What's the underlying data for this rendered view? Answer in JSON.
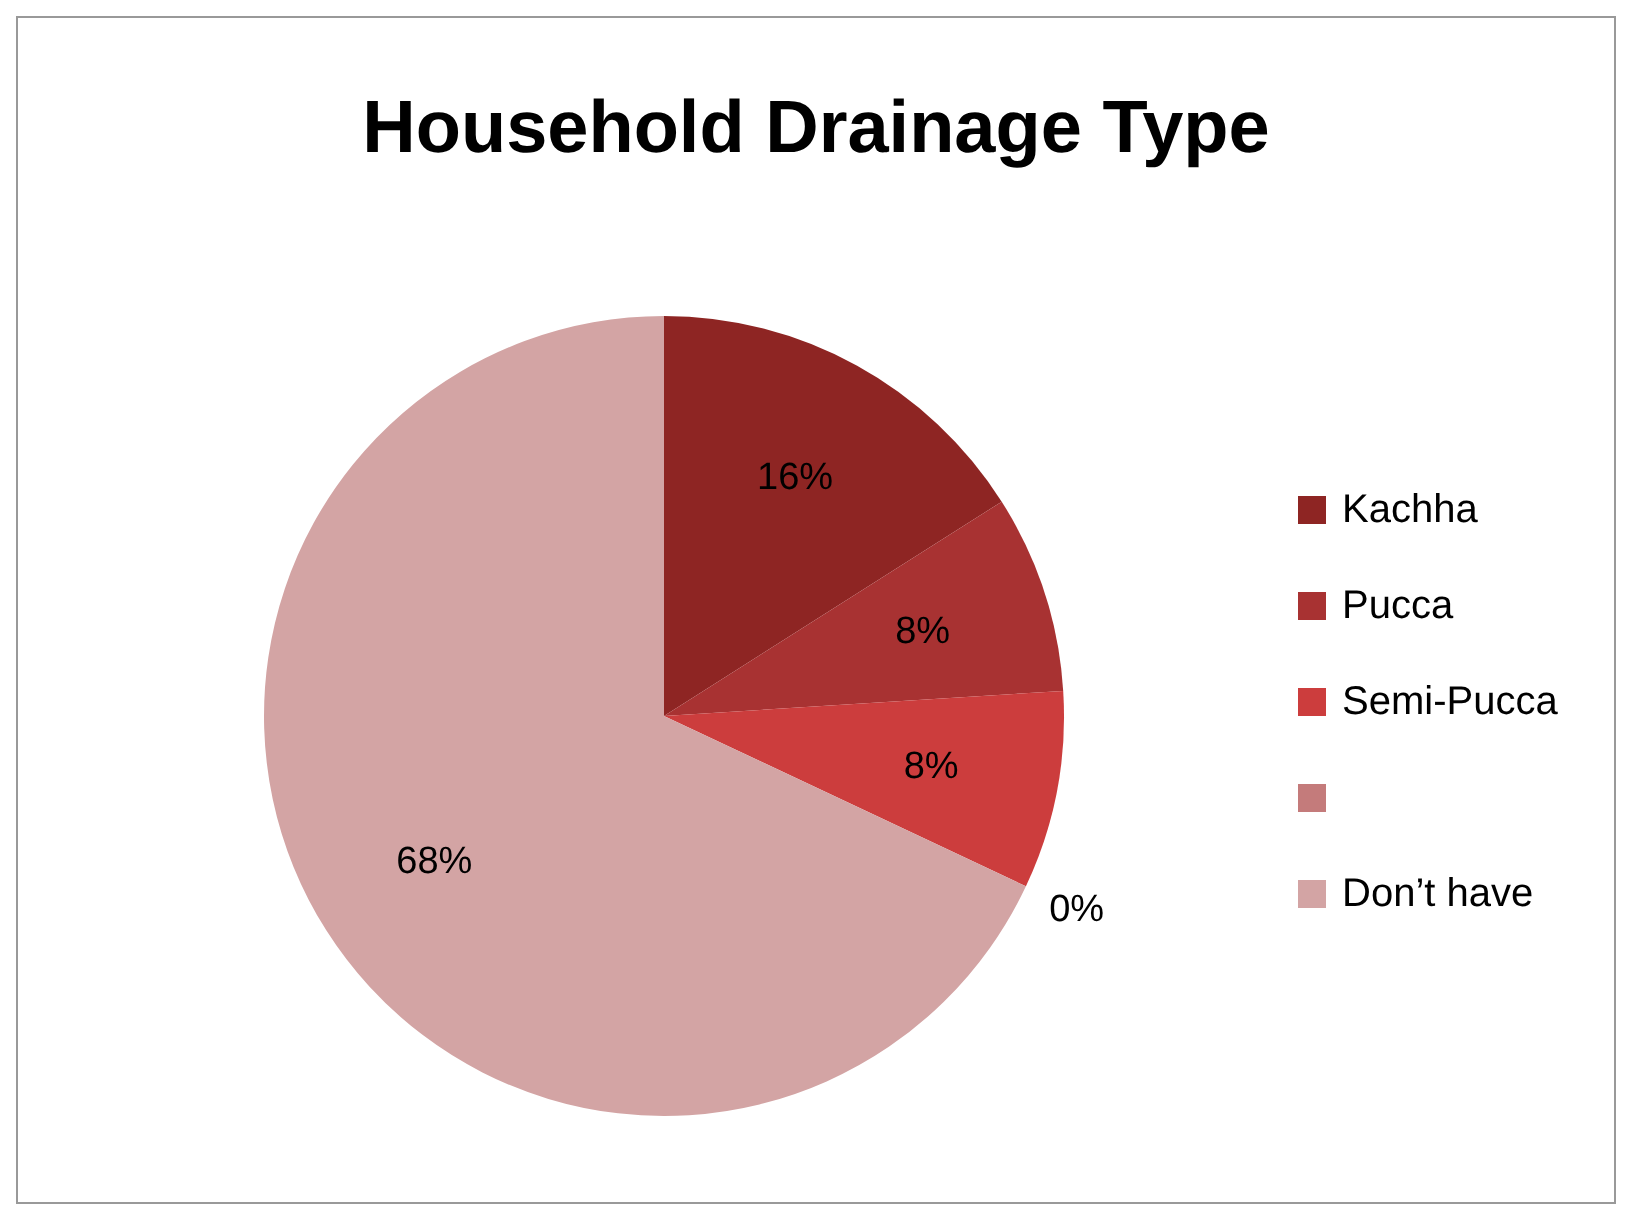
{
  "chart_data": {
    "type": "pie",
    "title": "Household Drainage Type",
    "categories": [
      "Kachha",
      "Pucca",
      "Semi-Pucca",
      null,
      "Don’t have"
    ],
    "values": [
      16,
      8,
      8,
      0,
      68
    ],
    "value_labels": [
      "16%",
      "8%",
      "8%",
      "0%",
      "68%"
    ],
    "colors": [
      "#8e2523",
      "#a83232",
      "#cc3d3d",
      "#c47b7b",
      "#d3a4a4"
    ],
    "legend": "right"
  }
}
